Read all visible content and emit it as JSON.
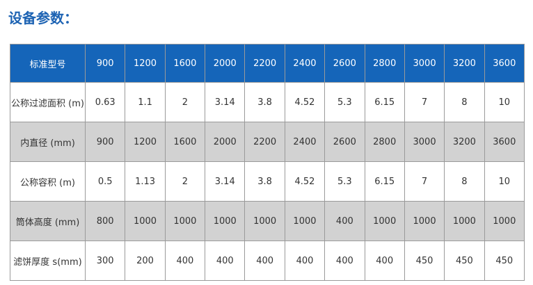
{
  "title": "设备参数：",
  "table": {
    "header": [
      "标准型号",
      "900",
      "1200",
      "1600",
      "2000",
      "2200",
      "2400",
      "2600",
      "2800",
      "3000",
      "3200",
      "3600"
    ],
    "rows": [
      [
        "公称过滤面积 (m)",
        "0.63",
        "1.1",
        "2",
        "3.14",
        "3.8",
        "4.52",
        "5.3",
        "6.15",
        "7",
        "8",
        "10"
      ],
      [
        "内直径 (mm)",
        "900",
        "1200",
        "1600",
        "2000",
        "2200",
        "2400",
        "2600",
        "2800",
        "3000",
        "3200",
        "3600"
      ],
      [
        "公称容积 (m)",
        "0.5",
        "1.13",
        "2",
        "3.14",
        "3.8",
        "4.52",
        "5.3",
        "6.15",
        "7",
        "8",
        "10"
      ],
      [
        "筒体高度 (mm)",
        "800",
        "1000",
        "1000",
        "1000",
        "1000",
        "1000",
        "400",
        "1000",
        "1000",
        "1000",
        "1000"
      ],
      [
        "滤饼厚度 s(mm)",
        "300",
        "200",
        "400",
        "400",
        "400",
        "400",
        "400",
        "400",
        "450",
        "450",
        "450"
      ]
    ]
  }
}
